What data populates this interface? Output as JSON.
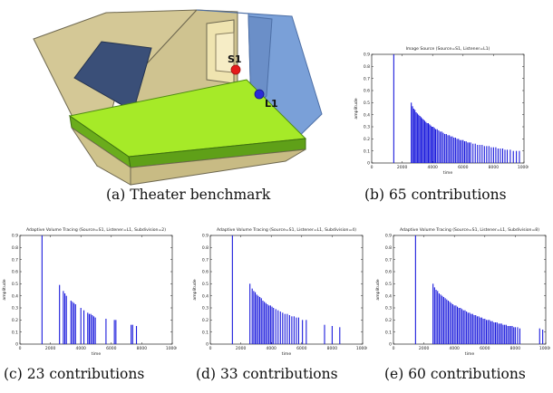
{
  "scene": {
    "source_label": "S1",
    "listener_label": "L1",
    "colors": {
      "walls": "#d4c896",
      "walls_edge": "#6e6850",
      "blue_wall": "#7aa0d8",
      "panel": "#3a4f78",
      "floor_top": "#a6ea28",
      "floor_side": "#5fa018",
      "source": "#e51b1b",
      "listener": "#2a2ad8"
    }
  },
  "captions": {
    "a": "(a)  Theater benchmark",
    "b": "(b)  65 contributions",
    "c": "(c)  23 contributions",
    "d": "(d)  33 contributions",
    "e": "(e)  60 contributions"
  },
  "chart_data": [
    {
      "id": "b",
      "type": "bar",
      "title": "Image Source (Source=S1, Listener=L1)",
      "xlabel": "time",
      "ylabel": "amplitude",
      "xlim": [
        0,
        10000
      ],
      "ylim": [
        0,
        0.9
      ],
      "xticks": [
        0,
        2000,
        4000,
        6000,
        8000,
        10000
      ],
      "yticks": [
        0,
        0.1,
        0.2,
        0.3,
        0.4,
        0.5,
        0.6,
        0.7,
        0.8,
        0.9
      ],
      "x": [
        1450,
        2600,
        2680,
        2760,
        2840,
        2920,
        3000,
        3080,
        3160,
        3240,
        3320,
        3400,
        3480,
        3560,
        3640,
        3720,
        3800,
        3880,
        3960,
        4040,
        4120,
        4200,
        4300,
        4400,
        4500,
        4600,
        4700,
        4800,
        4900,
        5000,
        5100,
        5200,
        5300,
        5400,
        5500,
        5600,
        5700,
        5800,
        5900,
        6000,
        6100,
        6200,
        6300,
        6400,
        6500,
        6650,
        6800,
        6950,
        7100,
        7250,
        7400,
        7550,
        7700,
        7850,
        8000,
        8150,
        8300,
        8450,
        8600,
        8750,
        8900,
        9100,
        9300,
        9500,
        9700
      ],
      "values": [
        0.9,
        0.5,
        0.47,
        0.45,
        0.44,
        0.42,
        0.41,
        0.4,
        0.39,
        0.38,
        0.37,
        0.36,
        0.35,
        0.34,
        0.33,
        0.33,
        0.32,
        0.31,
        0.3,
        0.3,
        0.29,
        0.28,
        0.28,
        0.27,
        0.26,
        0.26,
        0.25,
        0.24,
        0.24,
        0.23,
        0.23,
        0.22,
        0.22,
        0.21,
        0.21,
        0.2,
        0.2,
        0.19,
        0.19,
        0.19,
        0.18,
        0.18,
        0.17,
        0.17,
        0.17,
        0.16,
        0.16,
        0.15,
        0.15,
        0.15,
        0.14,
        0.14,
        0.14,
        0.13,
        0.13,
        0.13,
        0.12,
        0.12,
        0.12,
        0.11,
        0.11,
        0.11,
        0.1,
        0.1,
        0.1
      ]
    },
    {
      "id": "c",
      "type": "bar",
      "title": "Adaptive Volume Tracing (Source=S1, Listener=L1, Subdivision=2)",
      "xlabel": "time",
      "ylabel": "amplitude",
      "xlim": [
        0,
        10000
      ],
      "ylim": [
        0,
        0.9
      ],
      "xticks": [
        0,
        2000,
        4000,
        6000,
        8000,
        10000
      ],
      "yticks": [
        0,
        0.1,
        0.2,
        0.3,
        0.4,
        0.5,
        0.6,
        0.7,
        0.8,
        0.9
      ],
      "x": [
        1450,
        2600,
        2850,
        2950,
        3050,
        3350,
        3450,
        3550,
        3650,
        4000,
        4200,
        4450,
        4550,
        4650,
        4750,
        4850,
        4950,
        5650,
        6200,
        6300,
        7300,
        7400,
        7650
      ],
      "values": [
        0.9,
        0.49,
        0.44,
        0.42,
        0.4,
        0.36,
        0.35,
        0.34,
        0.33,
        0.3,
        0.28,
        0.26,
        0.25,
        0.25,
        0.24,
        0.23,
        0.22,
        0.21,
        0.2,
        0.2,
        0.16,
        0.16,
        0.15
      ]
    },
    {
      "id": "d",
      "type": "bar",
      "title": "Adaptive Volume Tracing (Source=S1, Listener=L1, Subdivision=4)",
      "xlabel": "time",
      "ylabel": "amplitude",
      "xlim": [
        0,
        10000
      ],
      "ylim": [
        0,
        0.9
      ],
      "xticks": [
        0,
        2000,
        4000,
        6000,
        8000,
        10000
      ],
      "yticks": [
        0,
        0.1,
        0.2,
        0.3,
        0.4,
        0.5,
        0.6,
        0.7,
        0.8,
        0.9
      ],
      "x": [
        1450,
        2600,
        2750,
        2850,
        2950,
        3050,
        3150,
        3250,
        3350,
        3450,
        3550,
        3650,
        3750,
        3850,
        3950,
        4050,
        4150,
        4300,
        4450,
        4600,
        4750,
        4900,
        5050,
        5200,
        5350,
        5500,
        5650,
        5800,
        6050,
        6300,
        7500,
        8000,
        8500
      ],
      "values": [
        0.9,
        0.5,
        0.46,
        0.44,
        0.43,
        0.41,
        0.4,
        0.39,
        0.38,
        0.36,
        0.35,
        0.34,
        0.33,
        0.32,
        0.32,
        0.31,
        0.3,
        0.29,
        0.28,
        0.27,
        0.26,
        0.25,
        0.25,
        0.24,
        0.23,
        0.23,
        0.22,
        0.22,
        0.2,
        0.2,
        0.16,
        0.15,
        0.14
      ]
    },
    {
      "id": "e",
      "type": "bar",
      "title": "Adaptive Volume Tracing (Source=S1, Listener=L1, Subdivision=8)",
      "xlabel": "time",
      "ylabel": "amplitude",
      "xlim": [
        0,
        10000
      ],
      "ylim": [
        0,
        0.9
      ],
      "xticks": [
        0,
        2000,
        4000,
        6000,
        8000,
        10000
      ],
      "yticks": [
        0,
        0.1,
        0.2,
        0.3,
        0.4,
        0.5,
        0.6,
        0.7,
        0.8,
        0.9
      ],
      "x": [
        1450,
        2600,
        2700,
        2800,
        2900,
        3000,
        3100,
        3200,
        3300,
        3400,
        3500,
        3600,
        3700,
        3800,
        3900,
        4000,
        4100,
        4200,
        4300,
        4400,
        4500,
        4600,
        4700,
        4800,
        4900,
        5000,
        5100,
        5200,
        5300,
        5400,
        5500,
        5600,
        5700,
        5800,
        5900,
        6000,
        6100,
        6200,
        6300,
        6400,
        6500,
        6600,
        6700,
        6800,
        6900,
        7000,
        7100,
        7200,
        7300,
        7400,
        7500,
        7600,
        7700,
        7800,
        7900,
        8000,
        8150,
        8300,
        9600,
        9800
      ],
      "values": [
        0.9,
        0.5,
        0.47,
        0.45,
        0.44,
        0.42,
        0.41,
        0.4,
        0.39,
        0.38,
        0.37,
        0.36,
        0.35,
        0.34,
        0.33,
        0.32,
        0.32,
        0.31,
        0.3,
        0.3,
        0.29,
        0.28,
        0.28,
        0.27,
        0.26,
        0.26,
        0.25,
        0.25,
        0.24,
        0.24,
        0.23,
        0.23,
        0.22,
        0.22,
        0.21,
        0.21,
        0.2,
        0.2,
        0.2,
        0.19,
        0.19,
        0.18,
        0.18,
        0.18,
        0.17,
        0.17,
        0.17,
        0.16,
        0.16,
        0.16,
        0.15,
        0.15,
        0.15,
        0.15,
        0.14,
        0.14,
        0.14,
        0.13,
        0.13,
        0.12
      ]
    }
  ]
}
